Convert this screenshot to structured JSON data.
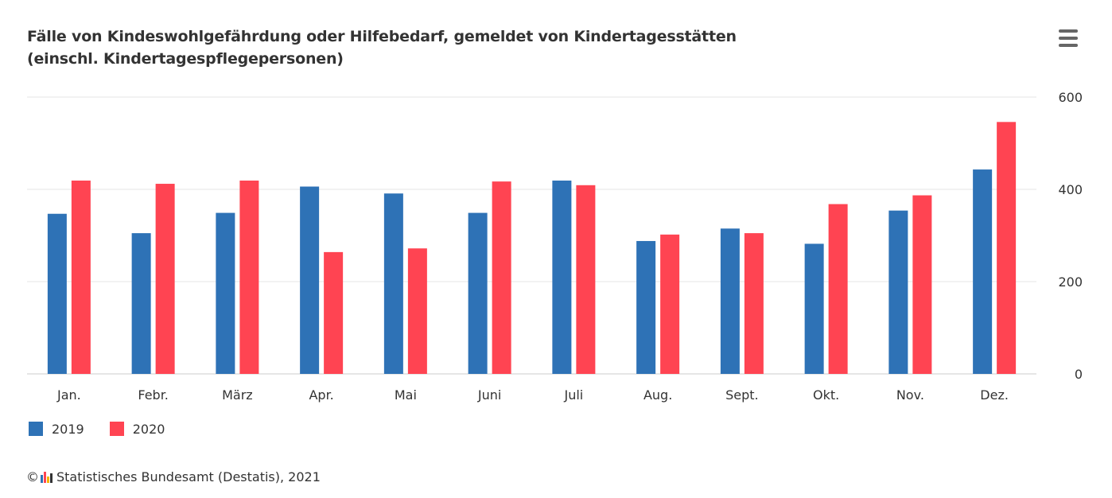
{
  "chart_data": {
    "type": "bar",
    "title_line1": "Fälle von Kindeswohlgefährdung oder Hilfebedarf, gemeldet von Kindertagesstätten",
    "title_line2": "(einschl. Kindertagespflegepersonen)",
    "categories": [
      "Jan.",
      "Febr.",
      "März",
      "Apr.",
      "Mai",
      "Juni",
      "Juli",
      "Aug.",
      "Sept.",
      "Okt.",
      "Nov.",
      "Dez."
    ],
    "series": [
      {
        "name": "2019",
        "color": "#2e72b6",
        "values": [
          347,
          305,
          349,
          406,
          391,
          349,
          419,
          288,
          315,
          282,
          354,
          443
        ]
      },
      {
        "name": "2020",
        "color": "#ff4452",
        "values": [
          419,
          412,
          419,
          264,
          272,
          417,
          409,
          302,
          305,
          368,
          387,
          546
        ]
      }
    ],
    "y_axis": {
      "min": 0,
      "max": 600,
      "ticks": [
        "0",
        "200",
        "400",
        "600"
      ],
      "position": "right"
    },
    "grid": true,
    "legend_position": "bottom-left"
  },
  "menu": {
    "icon": "hamburger-menu-icon"
  },
  "credits": {
    "prefix": "©",
    "text": "Statistisches Bundesamt (Destatis), 2021"
  }
}
